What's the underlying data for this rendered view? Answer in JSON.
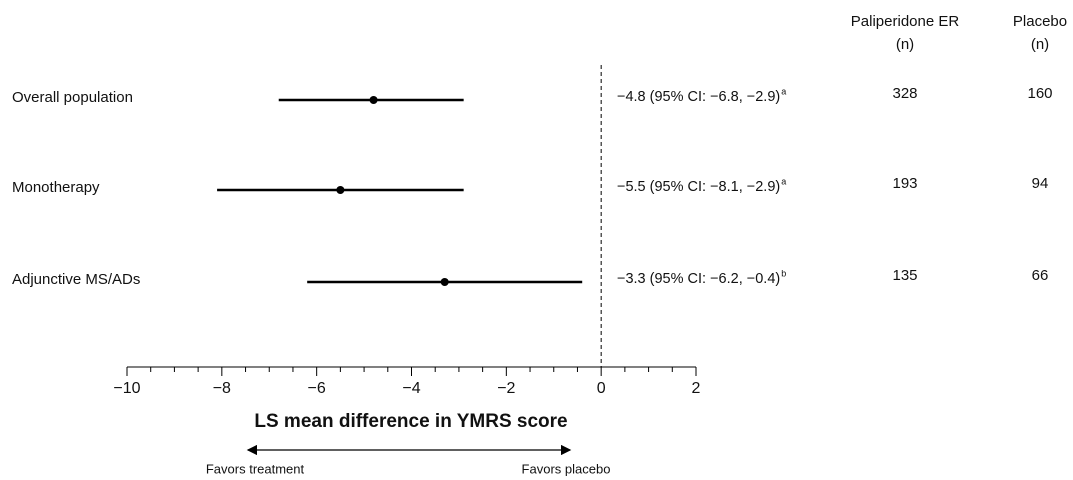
{
  "chart_data": {
    "type": "forest",
    "categories": [
      "Overall population",
      "Monotherapy",
      "Adjunctive MS/ADs"
    ],
    "values": [
      -4.8,
      -5.5,
      -3.3
    ],
    "lower": [
      -6.8,
      -8.1,
      -6.2
    ],
    "upper": [
      -2.9,
      -2.9,
      -0.4
    ],
    "value_labels": [
      "−4.8 (95% CI: −6.8, −2.9)",
      "−5.5 (95% CI: −8.1, −2.9)",
      "−3.3 (95% CI: −6.2, −0.4)"
    ],
    "footnotes": [
      "a",
      "a",
      "b"
    ],
    "color": "#000000",
    "columns": [
      {
        "header": "Paliperidone ER",
        "unit": "(n)",
        "values": [
          328,
          193,
          135
        ]
      },
      {
        "header": "Placebo",
        "unit": "(n)",
        "values": [
          160,
          94,
          66
        ]
      }
    ],
    "xlabel": "LS mean difference in YMRS score",
    "xlim": [
      -10,
      2
    ],
    "xticks": [
      {
        "value": -10,
        "label": "−10"
      },
      {
        "value": -8,
        "label": "−8"
      },
      {
        "value": -6,
        "label": "−6"
      },
      {
        "value": -4,
        "label": "−4"
      },
      {
        "value": -2,
        "label": "−2"
      },
      0,
      2
    ],
    "xminorticks": [
      -9.5,
      -9,
      -8.5,
      -7.5,
      -7,
      -6.5,
      -5.5,
      -5,
      -4.5,
      -3.5,
      -3,
      -2.5,
      -1.5,
      -1,
      -0.5,
      0.5,
      1,
      1.5
    ],
    "reference_line": 0,
    "annotations": [
      "Favors treatment",
      "Favors placebo"
    ]
  }
}
